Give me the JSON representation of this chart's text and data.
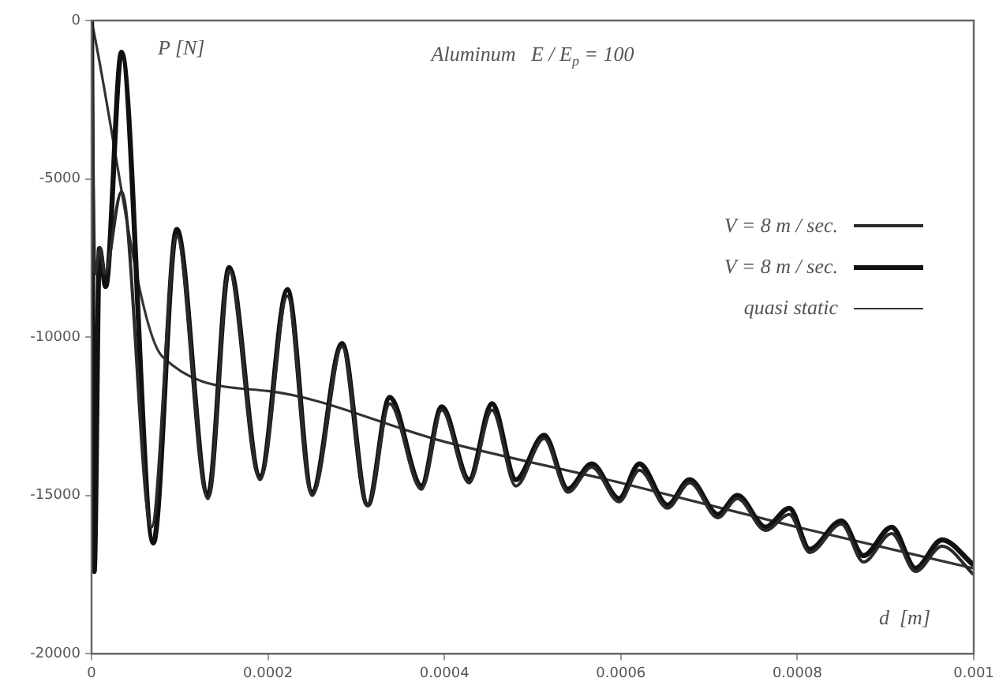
{
  "chart_data": {
    "type": "line",
    "title": "Aluminum   E / E$_{p}$ = 100",
    "xlabel": "d  [m]",
    "ylabel": "P [N]",
    "xlim": [
      0,
      0.001
    ],
    "xticks": [
      0,
      0.0002,
      0.0004,
      0.0006,
      0.0008,
      0.001
    ],
    "ylim": [
      -20000,
      0
    ],
    "yticks": [
      0,
      -5000,
      -10000,
      -15000,
      -20000
    ],
    "grid": false,
    "legend": "right",
    "marker": "none",
    "line_style": "solid",
    "series": [
      {
        "name": "V = 8 m / sec.",
        "color": "#2a2a2a",
        "x": [
          0,
          4e-06,
          1e-05,
          1.5e-05,
          3.4e-05,
          6.8e-05,
          9.66e-05,
          0.000132,
          0.000156,
          0.000191,
          0.000222,
          0.00025,
          0.000284,
          0.000313,
          0.000338,
          0.000374,
          0.000397,
          0.000428,
          0.000454,
          0.000481,
          0.000513,
          0.00054,
          0.000567,
          0.000598,
          0.000621,
          0.000653,
          0.000678,
          0.00071,
          0.000732,
          0.000764,
          0.000791,
          0.000814,
          0.00085,
          0.000875,
          0.000907,
          0.000934,
          0.000964,
          0.001
        ],
        "values": [
          -200,
          -8000,
          -7200,
          -8000,
          -5400,
          -16000,
          -6800,
          -15100,
          -7900,
          -14500,
          -8700,
          -15000,
          -10300,
          -15300,
          -12100,
          -14800,
          -12300,
          -14600,
          -12300,
          -14700,
          -13200,
          -14900,
          -14100,
          -15200,
          -14200,
          -15400,
          -14600,
          -15700,
          -15100,
          -16100,
          -15600,
          -16800,
          -15900,
          -17100,
          -16200,
          -17400,
          -16600,
          -17500
        ]
      },
      {
        "name": "V = 8 m / sec.",
        "color": "#111111",
        "x": [
          0,
          3e-06,
          9e-06,
          1.6e-05,
          3.4e-05,
          7e-05,
          9.66e-05,
          0.000132,
          0.000156,
          0.000191,
          0.000222,
          0.00025,
          0.000284,
          0.000313,
          0.000338,
          0.000374,
          0.000397,
          0.000428,
          0.000454,
          0.000481,
          0.000513,
          0.00054,
          0.000567,
          0.000598,
          0.000621,
          0.000653,
          0.000678,
          0.00071,
          0.000732,
          0.000764,
          0.000791,
          0.000814,
          0.00085,
          0.000875,
          0.000907,
          0.000934,
          0.000964,
          0.001
        ],
        "values": [
          0,
          -17400,
          -7200,
          -8400,
          -1000,
          -16500,
          -6600,
          -15000,
          -7800,
          -14400,
          -8500,
          -14900,
          -10200,
          -15300,
          -11900,
          -14700,
          -12200,
          -14500,
          -12100,
          -14500,
          -13100,
          -14800,
          -14000,
          -15100,
          -14000,
          -15300,
          -14500,
          -15600,
          -15000,
          -16000,
          -15400,
          -16700,
          -15800,
          -16900,
          -16000,
          -17300,
          -16400,
          -17200
        ]
      },
      {
        "name": "quasi static",
        "color": "#333333",
        "x": [
          0,
          8e-05,
          0.0002,
          0.0004,
          0.0006,
          0.0008,
          0.001
        ],
        "values": [
          0,
          -10600,
          -11700,
          -13300,
          -14600,
          -16000,
          -17300
        ]
      }
    ]
  }
}
